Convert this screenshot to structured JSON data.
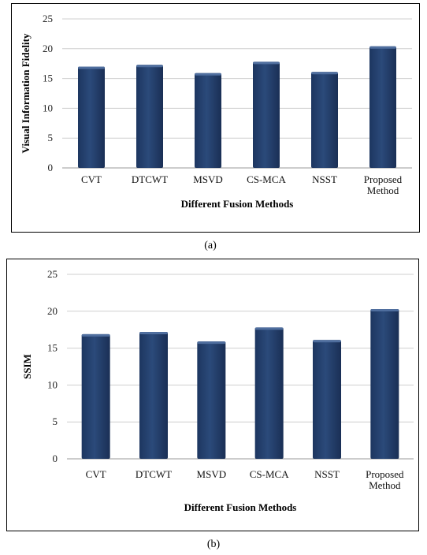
{
  "chart_data": [
    {
      "type": "bar",
      "panel_label": "(a)",
      "categories": [
        "CVT",
        "DTCWT",
        "MSVD",
        "CS-MCA",
        "NSST",
        "Proposed Method"
      ],
      "values": [
        17.0,
        17.3,
        15.9,
        17.8,
        16.1,
        20.4
      ],
      "xlabel": "Different  Fusion Methods",
      "ylabel": "Visual  Information  Fidelity",
      "ylim": [
        0,
        25
      ],
      "yticks": [
        0,
        5,
        10,
        15,
        20,
        25
      ],
      "grid": true,
      "bar_color": "#2b4a7a"
    },
    {
      "type": "bar",
      "panel_label": "(b)",
      "categories": [
        "CVT",
        "DTCWT",
        "MSVD",
        "CS-MCA",
        "NSST",
        "Proposed Method"
      ],
      "values": [
        16.9,
        17.2,
        15.9,
        17.8,
        16.1,
        20.3
      ],
      "xlabel": "Different  Fusion Methods",
      "ylabel": "SSIM",
      "ylim": [
        0,
        25
      ],
      "yticks": [
        0,
        5,
        10,
        15,
        20,
        25
      ],
      "grid": true,
      "bar_color": "#2b4a7a"
    }
  ]
}
